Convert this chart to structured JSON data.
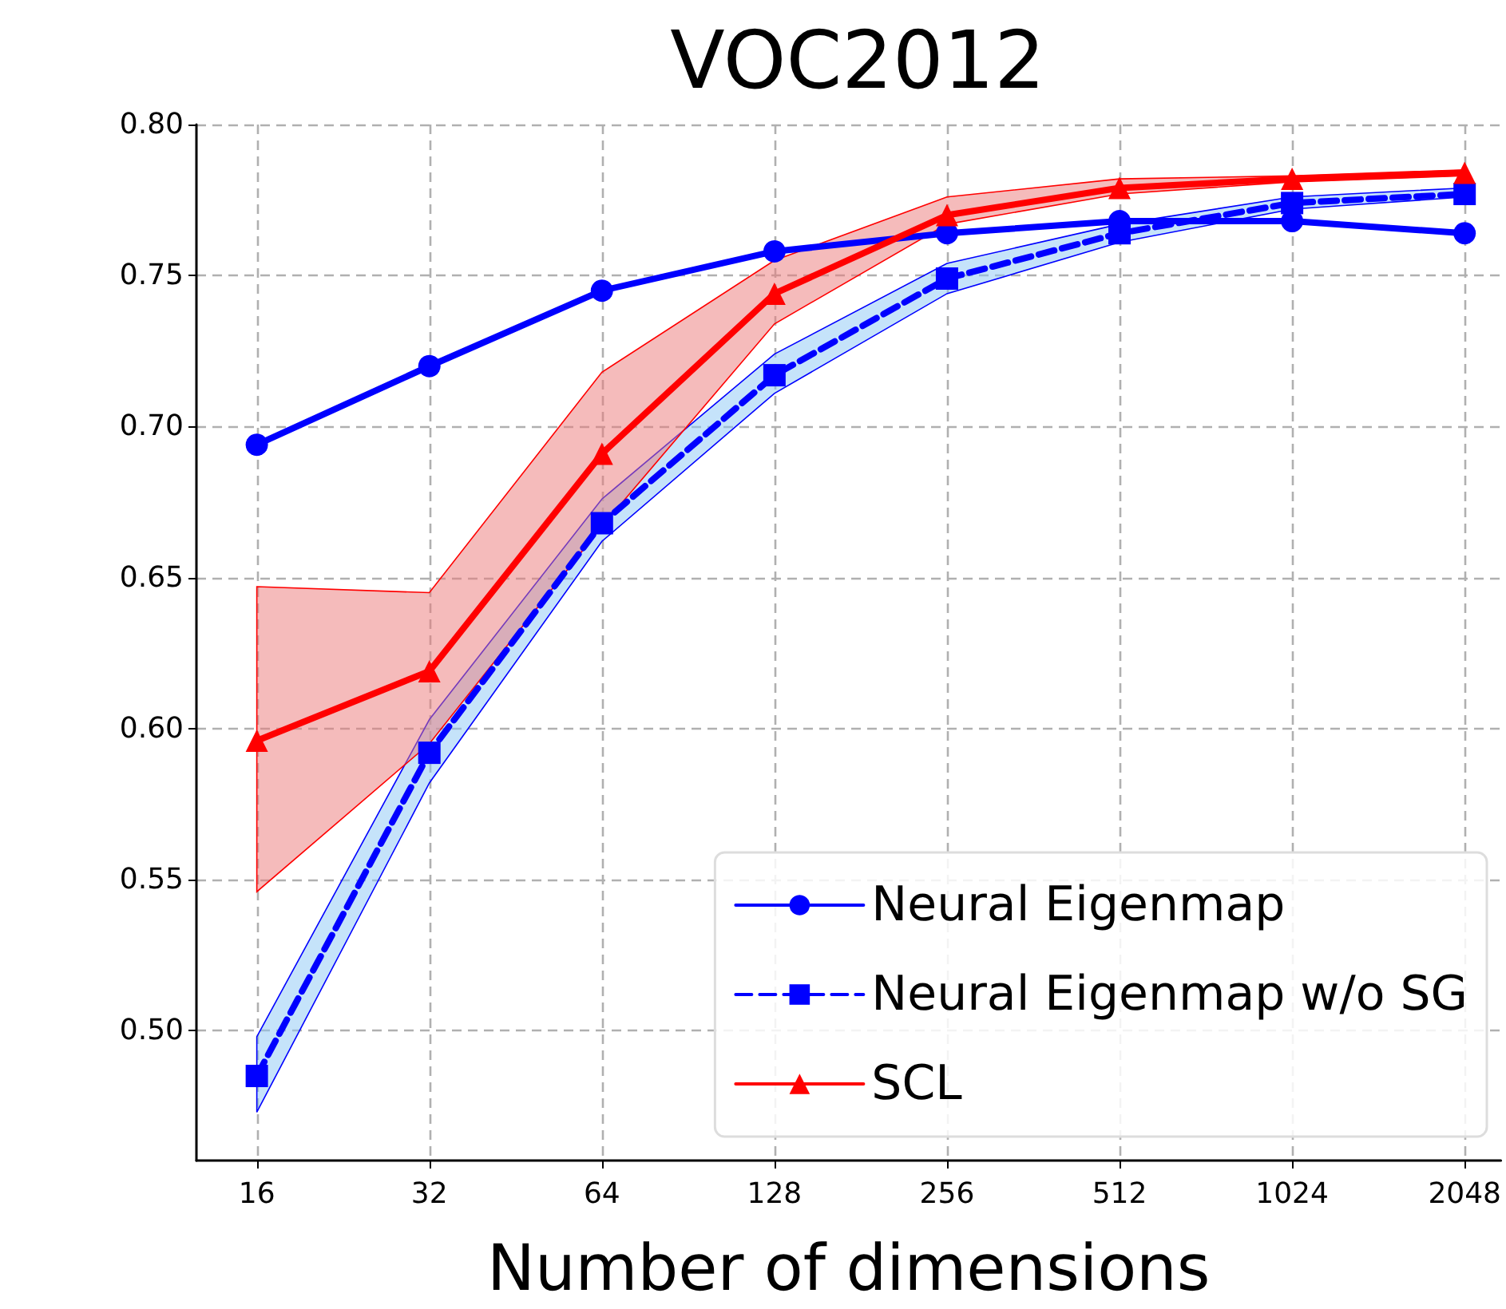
{
  "chart_data": {
    "type": "line",
    "title": "VOC2012",
    "xlabel": "Number of dimensions",
    "categories": [
      "16",
      "32",
      "64",
      "128",
      "256",
      "512",
      "1024",
      "2048"
    ],
    "ylim": [
      0.457,
      0.8
    ],
    "yticks": [
      {
        "value": 0.5,
        "label": "0.50"
      },
      {
        "value": 0.55,
        "label": "0.55"
      },
      {
        "value": 0.6,
        "label": "0.60"
      },
      {
        "value": 0.65,
        "label": "0.65"
      },
      {
        "value": 0.7,
        "label": "0.70"
      },
      {
        "value": 0.75,
        "label": "0.75"
      },
      {
        "value": 0.8,
        "label": "0.80"
      }
    ],
    "grid": true,
    "legend": "bottom right",
    "series": [
      {
        "name": "Neural Eigenmap",
        "color": "#0000ff",
        "marker": "circle",
        "line_style": "solid",
        "values": [
          0.694,
          0.72,
          0.745,
          0.758,
          0.764,
          0.768,
          0.768,
          0.764
        ]
      },
      {
        "name": "Neural Eigenmap w/o SG",
        "color": "#0000ff",
        "marker": "square",
        "line_style": "dashed",
        "values": [
          0.485,
          0.592,
          0.668,
          0.717,
          0.749,
          0.764,
          0.774,
          0.777
        ],
        "lower": [
          0.473,
          0.582,
          0.662,
          0.711,
          0.744,
          0.761,
          0.772,
          0.776
        ],
        "upper": [
          0.498,
          0.603,
          0.676,
          0.724,
          0.754,
          0.767,
          0.776,
          0.779
        ]
      },
      {
        "name": "SCL",
        "color": "#ff0000",
        "marker": "triangle",
        "line_style": "solid",
        "values": [
          0.596,
          0.619,
          0.691,
          0.744,
          0.77,
          0.779,
          0.782,
          0.784
        ],
        "lower": [
          0.546,
          0.595,
          0.667,
          0.734,
          0.767,
          0.777,
          0.781,
          0.783
        ],
        "upper": [
          0.647,
          0.645,
          0.718,
          0.755,
          0.776,
          0.782,
          0.783,
          0.785
        ]
      }
    ]
  }
}
